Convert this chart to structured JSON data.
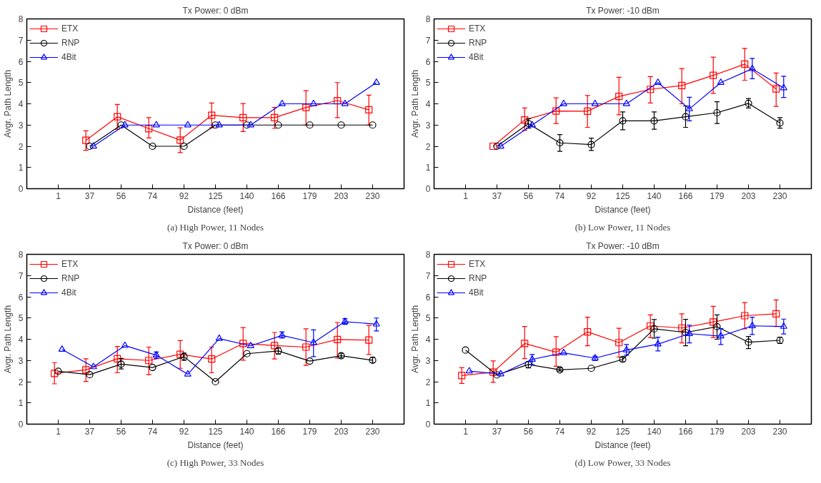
{
  "chart_data": [
    {
      "type": "line",
      "title": "Tx Power: 0 dBm",
      "xlabel": "Distance (feet)",
      "ylabel": "Avgr. Path Length",
      "categories": [
        "1",
        "37",
        "56",
        "74",
        "92",
        "125",
        "140",
        "166",
        "179",
        "203",
        "230"
      ],
      "ylim": [
        0,
        8
      ],
      "yticks": [
        0,
        1,
        2,
        3,
        4,
        5,
        6,
        7,
        8
      ],
      "legend": "top left",
      "grid": false,
      "annotations": [
        "(a) High Power, 11 Nodes"
      ],
      "series": [
        {
          "name": "ETX",
          "color": "#ff0000",
          "marker": "square",
          "values": [
            null,
            2.28,
            3.39,
            2.83,
            2.29,
            3.46,
            3.35,
            3.35,
            3.83,
            4.15,
            3.72
          ],
          "errors": [
            null,
            [
              1.81,
              2.73
            ],
            [
              2.8,
              3.97
            ],
            [
              2.39,
              3.35
            ],
            [
              1.7,
              2.87
            ],
            [
              2.87,
              4.04
            ],
            [
              2.69,
              4.01
            ],
            [
              2.84,
              3.83
            ],
            [
              3.0,
              4.62
            ],
            [
              3.35,
              5.0
            ],
            [
              3.0,
              4.41
            ]
          ]
        },
        {
          "name": "RNP",
          "color": "#000000",
          "marker": "circle",
          "values": [
            null,
            2,
            3,
            2,
            2,
            3,
            3,
            3,
            3,
            3,
            3
          ]
        },
        {
          "name": "4Bit",
          "color": "#0000ff",
          "marker": "triangle",
          "values": [
            null,
            2,
            3,
            3,
            3,
            3,
            3,
            4,
            4,
            4,
            5
          ]
        }
      ]
    },
    {
      "type": "line",
      "title": "Tx Power: -10 dBm",
      "xlabel": "Distance (feet)",
      "ylabel": "Avgr. Path Length",
      "categories": [
        "1",
        "37",
        "56",
        "74",
        "92",
        "125",
        "140",
        "166",
        "179",
        "203",
        "230"
      ],
      "ylim": [
        0,
        8
      ],
      "yticks": [
        0,
        1,
        2,
        3,
        4,
        5,
        6,
        7,
        8
      ],
      "legend": "top left",
      "grid": false,
      "annotations": [
        "(b) Low Power, 11 Nodes"
      ],
      "series": [
        {
          "name": "ETX",
          "color": "#ff0000",
          "marker": "square",
          "values": [
            null,
            2.0,
            3.24,
            3.66,
            3.65,
            4.35,
            4.68,
            4.86,
            5.34,
            5.87,
            4.7
          ],
          "errors": [
            null,
            null,
            [
              2.75,
              3.8
            ],
            [
              3.07,
              4.28
            ],
            [
              2.89,
              4.39
            ],
            [
              3.48,
              5.25
            ],
            [
              4.04,
              5.28
            ],
            [
              4.0,
              5.66
            ],
            [
              4.49,
              6.2
            ],
            [
              5.11,
              6.61
            ],
            [
              3.88,
              5.45
            ]
          ]
        },
        {
          "name": "RNP",
          "color": "#000000",
          "marker": "circle",
          "values": [
            null,
            2.0,
            3.07,
            2.16,
            2.08,
            3.2,
            3.2,
            3.39,
            3.58,
            4.02,
            3.1
          ],
          "errors": [
            null,
            null,
            [
              2.85,
              3.3
            ],
            [
              1.76,
              2.55
            ],
            [
              1.8,
              2.38
            ],
            [
              2.78,
              3.62
            ],
            [
              2.8,
              3.62
            ],
            [
              2.89,
              3.9
            ],
            [
              3.07,
              4.1
            ],
            [
              3.8,
              4.25
            ],
            [
              2.85,
              3.35
            ]
          ]
        },
        {
          "name": "4Bit",
          "color": "#0000ff",
          "marker": "triangle",
          "values": [
            null,
            2.0,
            3.0,
            4.0,
            4.0,
            4.0,
            5.0,
            3.76,
            5.0,
            5.65,
            4.75
          ],
          "errors": [
            null,
            null,
            null,
            null,
            null,
            null,
            null,
            [
              3.2,
              4.31
            ],
            null,
            [
              5.18,
              6.14
            ],
            [
              4.3,
              5.3
            ]
          ]
        }
      ]
    },
    {
      "type": "line",
      "title": "Tx Power: 0 dBm",
      "xlabel": "Distance (feet)",
      "ylabel": "Avgr. Path Length",
      "categories": [
        "1",
        "37",
        "56",
        "74",
        "92",
        "125",
        "140",
        "166",
        "179",
        "203",
        "230"
      ],
      "ylim": [
        0,
        8
      ],
      "yticks": [
        0,
        1,
        2,
        3,
        4,
        5,
        6,
        7,
        8
      ],
      "legend": "top left",
      "grid": false,
      "annotations": [
        "(c) High Power, 33 Nodes"
      ],
      "series": [
        {
          "name": "ETX",
          "color": "#ff0000",
          "marker": "square",
          "values": [
            2.39,
            2.56,
            3.08,
            3.0,
            3.29,
            3.07,
            3.8,
            3.7,
            3.63,
            3.99,
            3.96
          ],
          "errors": [
            [
              1.9,
              2.9
            ],
            [
              2.01,
              3.08
            ],
            [
              2.42,
              3.66
            ],
            [
              2.33,
              3.63
            ],
            [
              2.63,
              3.94
            ],
            [
              2.42,
              3.63
            ],
            [
              3.01,
              4.55
            ],
            [
              3.07,
              4.32
            ],
            [
              2.77,
              4.49
            ],
            [
              3.11,
              4.79
            ],
            [
              3.28,
              4.65
            ]
          ]
        },
        {
          "name": "RNP",
          "color": "#000000",
          "marker": "circle",
          "values": [
            2.49,
            2.33,
            2.83,
            2.67,
            3.18,
            2.0,
            3.32,
            3.45,
            2.97,
            3.22,
            3.01
          ],
          "errors": [
            null,
            null,
            [
              2.6,
              3.1
            ],
            null,
            [
              3.0,
              3.35
            ],
            null,
            null,
            [
              3.3,
              3.6
            ],
            null,
            [
              3.12,
              3.32
            ],
            [
              2.9,
              3.15
            ]
          ]
        },
        {
          "name": "4Bit",
          "color": "#0000ff",
          "marker": "triangle",
          "values": [
            3.52,
            2.7,
            3.7,
            3.25,
            2.35,
            4.03,
            3.69,
            4.18,
            3.84,
            4.83,
            4.71
          ],
          "errors": [
            null,
            null,
            null,
            [
              3.1,
              3.4
            ],
            null,
            null,
            null,
            [
              4.05,
              4.35
            ],
            [
              3.18,
              4.44
            ],
            [
              4.7,
              4.97
            ],
            [
              4.39,
              5.0
            ]
          ]
        }
      ]
    },
    {
      "type": "line",
      "title": "Tx Power: -10 dBm",
      "xlabel": "Distance (feet)",
      "ylabel": "Avgr. Path Length",
      "categories": [
        "1",
        "37",
        "56",
        "74",
        "92",
        "125",
        "140",
        "166",
        "179",
        "203",
        "230"
      ],
      "ylim": [
        0,
        8
      ],
      "yticks": [
        0,
        1,
        2,
        3,
        4,
        5,
        6,
        7,
        8
      ],
      "legend": "top left",
      "grid": false,
      "annotations": [
        "(d) Low Power, 33 Nodes"
      ],
      "series": [
        {
          "name": "ETX",
          "color": "#ff0000",
          "marker": "square",
          "values": [
            2.29,
            2.45,
            3.8,
            3.39,
            4.35,
            3.84,
            4.63,
            4.53,
            4.81,
            5.11,
            5.2
          ],
          "errors": [
            [
              1.92,
              2.66
            ],
            [
              1.97,
              2.98
            ],
            [
              3.09,
              4.6
            ],
            [
              2.73,
              4.12
            ],
            [
              3.69,
              5.04
            ],
            [
              3.16,
              4.52
            ],
            [
              4.08,
              5.15
            ],
            [
              3.83,
              5.2
            ],
            [
              4.08,
              5.55
            ],
            [
              4.49,
              5.73
            ],
            [
              4.6,
              5.85
            ]
          ]
        },
        {
          "name": "RNP",
          "color": "#000000",
          "marker": "circle",
          "values": [
            3.49,
            2.32,
            2.81,
            2.56,
            2.63,
            3.05,
            4.49,
            4.32,
            4.59,
            3.86,
            3.95
          ],
          "errors": [
            null,
            null,
            [
              2.65,
              2.95
            ],
            [
              2.5,
              2.65
            ],
            null,
            [
              2.95,
              3.15
            ],
            [
              4.05,
              4.93
            ],
            [
              3.69,
              4.94
            ],
            [
              4.0,
              5.15
            ],
            [
              3.56,
              4.13
            ],
            [
              3.8,
              4.1
            ]
          ]
        },
        {
          "name": "4Bit",
          "color": "#0000ff",
          "marker": "triangle",
          "values": [
            2.5,
            2.36,
            3.05,
            3.36,
            3.11,
            3.49,
            3.77,
            4.26,
            4.15,
            4.63,
            4.6
          ],
          "errors": [
            null,
            null,
            [
              2.8,
              3.28
            ],
            null,
            [
              3.0,
              3.2
            ],
            [
              3.25,
              3.75
            ],
            [
              3.45,
              4.1
            ],
            [
              3.83,
              4.66
            ],
            [
              3.75,
              4.5
            ],
            [
              4.22,
              5.04
            ],
            [
              4.25,
              4.95
            ]
          ]
        }
      ]
    }
  ]
}
